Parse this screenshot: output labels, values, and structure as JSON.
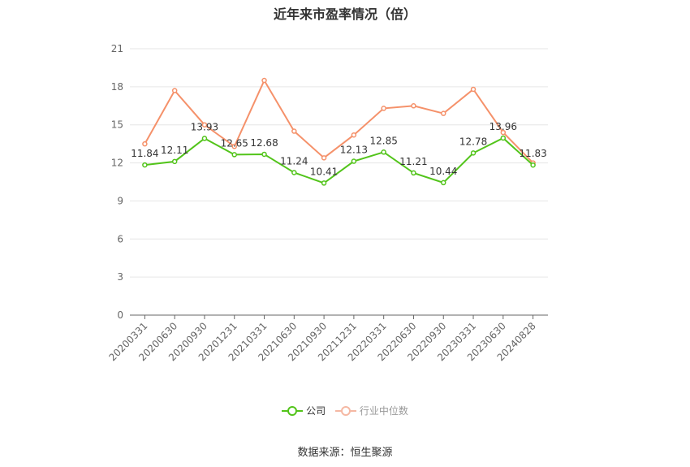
{
  "chart_data": {
    "type": "line",
    "title": "近年来市盈率情况（倍）",
    "categories": [
      "20200331",
      "20200630",
      "20200930",
      "20201231",
      "20210331",
      "20210630",
      "20210930",
      "20211231",
      "20220331",
      "20220630",
      "20220930",
      "20230331",
      "20230630",
      "20240828"
    ],
    "ylim": [
      0,
      21
    ],
    "yticks": [
      0,
      3,
      6,
      9,
      12,
      15,
      18,
      21
    ],
    "grid": true,
    "legend_position": "bottom",
    "series": [
      {
        "name": "公司",
        "color": "#52c41a",
        "values": [
          11.84,
          12.11,
          13.93,
          12.65,
          12.68,
          11.24,
          10.41,
          12.13,
          12.85,
          11.21,
          10.44,
          12.78,
          13.96,
          11.83
        ],
        "labels": [
          "11.84",
          "12.11",
          "13.93",
          "12.65",
          "12.68",
          "11.24",
          "10.41",
          "12.13",
          "12.85",
          "11.21",
          "10.44",
          "12.78",
          "13.96",
          "11.83"
        ]
      },
      {
        "name": "行业中位数",
        "color": "#f5916a",
        "values": [
          13.5,
          17.7,
          15.0,
          13.3,
          18.5,
          14.5,
          12.4,
          14.2,
          16.3,
          16.5,
          15.9,
          17.8,
          14.4,
          12.0
        ]
      }
    ]
  },
  "footer": {
    "source": "数据来源：恒生聚源"
  }
}
